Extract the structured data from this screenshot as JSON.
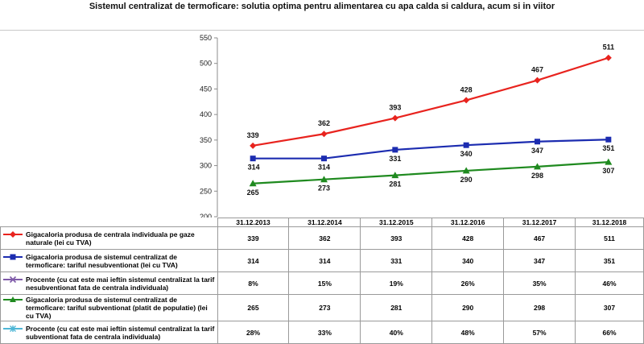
{
  "title": "Sistemul centralizat de termoficare: solutia optima pentru alimentarea cu apa calda si caldura, acum si in viitor",
  "chart_data": {
    "type": "line",
    "categories": [
      "31.12.2013",
      "31.12.2014",
      "31.12.2015",
      "31.12.2016",
      "31.12.2017",
      "31.12.2018"
    ],
    "ylim": [
      200,
      550
    ],
    "yticks": [
      200,
      250,
      300,
      350,
      400,
      450,
      500,
      550
    ],
    "grid": false,
    "legend": "bottom data table",
    "series": [
      {
        "name": "Gigacaloria produsa de centrala individuala pe gaze naturale (lei cu TVA)",
        "values": [
          339,
          362,
          393,
          428,
          467,
          511
        ],
        "table": [
          "339",
          "362",
          "393",
          "428",
          "467",
          "511"
        ],
        "color": "#e8231e",
        "marker": "diamond",
        "plotted": true
      },
      {
        "name": "Gigacaloria produsa de sistemul centralizat de termoficare: tariful nesubventionat (lei cu TVA)",
        "values": [
          314,
          314,
          331,
          340,
          347,
          351
        ],
        "table": [
          "314",
          "314",
          "331",
          "340",
          "347",
          "351"
        ],
        "color": "#1c2cb0",
        "marker": "square",
        "plotted": true
      },
      {
        "name": "Procente (cu cat este mai ieftin sistemul centralizat la tarif nesubventionat fata de centrala individuala)",
        "values": [
          8,
          15,
          19,
          26,
          35,
          46
        ],
        "table": [
          "8%",
          "15%",
          "19%",
          "26%",
          "35%",
          "46%"
        ],
        "color": "#7e5aa8",
        "marker": "x",
        "plotted": false
      },
      {
        "name": "Gigacaloria produsa de sistemul centralizat de termoficare: tariful subventionat (platit de populatie) (lei cu TVA)",
        "values": [
          265,
          273,
          281,
          290,
          298,
          307
        ],
        "table": [
          "265",
          "273",
          "281",
          "290",
          "298",
          "307"
        ],
        "color": "#1f8a1f",
        "marker": "triangle",
        "plotted": true
      },
      {
        "name": "Procente (cu cat este mai ieftin sistemul centralizat la tarif subventionat fata de centrala individuala)",
        "values": [
          28,
          33,
          40,
          48,
          57,
          66
        ],
        "table": [
          "28%",
          "33%",
          "40%",
          "48%",
          "57%",
          "66%"
        ],
        "color": "#4fb6d6",
        "marker": "star",
        "plotted": false
      }
    ]
  }
}
